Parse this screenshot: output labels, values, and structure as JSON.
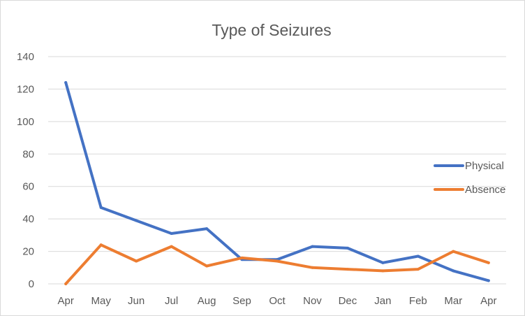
{
  "chart_data": {
    "type": "line",
    "title": "Type of Seizures",
    "categories": [
      "Apr",
      "May",
      "Jun",
      "Jul",
      "Aug",
      "Sep",
      "Oct",
      "Nov",
      "Dec",
      "Jan",
      "Feb",
      "Mar",
      "Apr"
    ],
    "ylim": [
      0,
      140
    ],
    "yticks": [
      0,
      20,
      40,
      60,
      80,
      100,
      120,
      140
    ],
    "grid": true,
    "legend_position": "right",
    "series": [
      {
        "name": "Physical",
        "color": "#4472c4",
        "values": [
          124,
          47,
          39,
          31,
          34,
          15,
          15,
          23,
          22,
          13,
          17,
          8,
          2
        ]
      },
      {
        "name": "Absence",
        "color": "#ed7d31",
        "values": [
          0,
          24,
          14,
          23,
          11,
          16,
          14,
          10,
          9,
          8,
          9,
          20,
          13
        ]
      }
    ]
  }
}
